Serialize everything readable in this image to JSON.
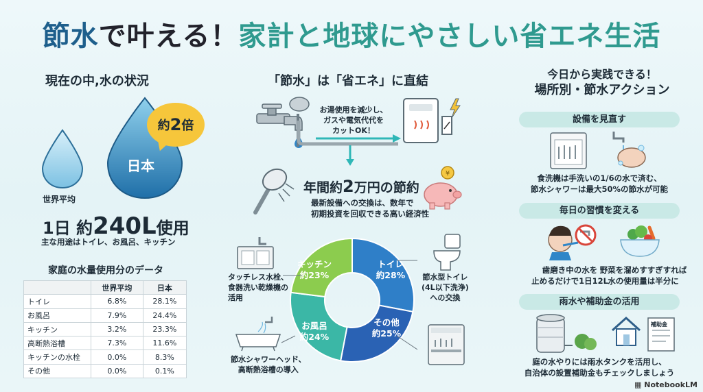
{
  "title": {
    "a": "節水",
    "b": "で叶える！",
    "c": "家計と地球にやさしい省エネ生活"
  },
  "left": {
    "heading": "現在の中,水の状況",
    "world_label": "世界平均",
    "japan_label": "日本",
    "bubble": {
      "prefix": "約",
      "value": "2",
      "suffix": "倍"
    },
    "daily_prefix": "1日 約",
    "daily_value": "240L",
    "daily_suffix": "使用",
    "daily_note": "主な用途はトイレ、お風呂、キッチン",
    "table_heading": "家庭の水量使用分のデータ",
    "table": {
      "headers": [
        "",
        "世界平均",
        "日本"
      ],
      "rows": [
        [
          "トイレ",
          "6.8%",
          "28.1%"
        ],
        [
          "お風呂",
          "7.9%",
          "24.4%"
        ],
        [
          "キッチン",
          "3.2%",
          "23.3%"
        ],
        [
          "高断熱浴槽",
          "7.3%",
          "11.6%"
        ],
        [
          "キッチンの水栓",
          "0.0%",
          "8.3%"
        ],
        [
          "その他",
          "0.0%",
          "0.1%"
        ]
      ]
    }
  },
  "middle": {
    "heading": "「節水」は「省エネ」に直結",
    "hot_water_note": [
      "お湯使用を減少し、",
      "ガスや電気代代を",
      "カットOK！"
    ],
    "saving_prefix": "年間約",
    "saving_value": "2",
    "saving_suffix": "万円の節約",
    "saving_note": [
      "最新設備への交換は、数年で",
      "初期投資を回収できる高い経済性"
    ],
    "callout_kitchen": [
      "タッチレス水栓、",
      "食器洗い乾燥機の",
      "活用"
    ],
    "callout_toilet": [
      "節水型トイレ",
      "(4L以下洗浄)",
      "への交換"
    ],
    "callout_bath": [
      "節水シャワーヘッド、",
      "高断熱浴槽の導入"
    ]
  },
  "chart_data": {
    "type": "pie",
    "categories": [
      "トイレ",
      "その他",
      "お風呂",
      "キッチン"
    ],
    "values": [
      28,
      25,
      24,
      23
    ],
    "labels": [
      "約28%",
      "約25%",
      "約24%",
      "約23%"
    ],
    "colors": [
      "#2f7fc8",
      "#2a62b4",
      "#3bb7a6",
      "#8ccc4e"
    ]
  },
  "right": {
    "heading": [
      "今日から実践できる！",
      "場所別・節水アクション"
    ],
    "pill1": "設備を見直す",
    "note1": [
      "食洗機は手洗いの1/6の水で済む、",
      "節水シャワーは最大50%の節水が可能"
    ],
    "pill2": "毎日の習慣を変える",
    "note2a": [
      "歯磨き中の水を",
      "止めるだけで1日12L"
    ],
    "note2b": [
      "野菜を溜めすすぎすれば",
      "水の使用量は半分に"
    ],
    "pill3": "雨水や補助金の活用",
    "subsidy_label": "補助金",
    "note3": [
      "庭の水やりには雨水タンクを活用し、",
      "自治体の設置補助金もチェックしましょう"
    ]
  },
  "brand": "NotebookLM"
}
